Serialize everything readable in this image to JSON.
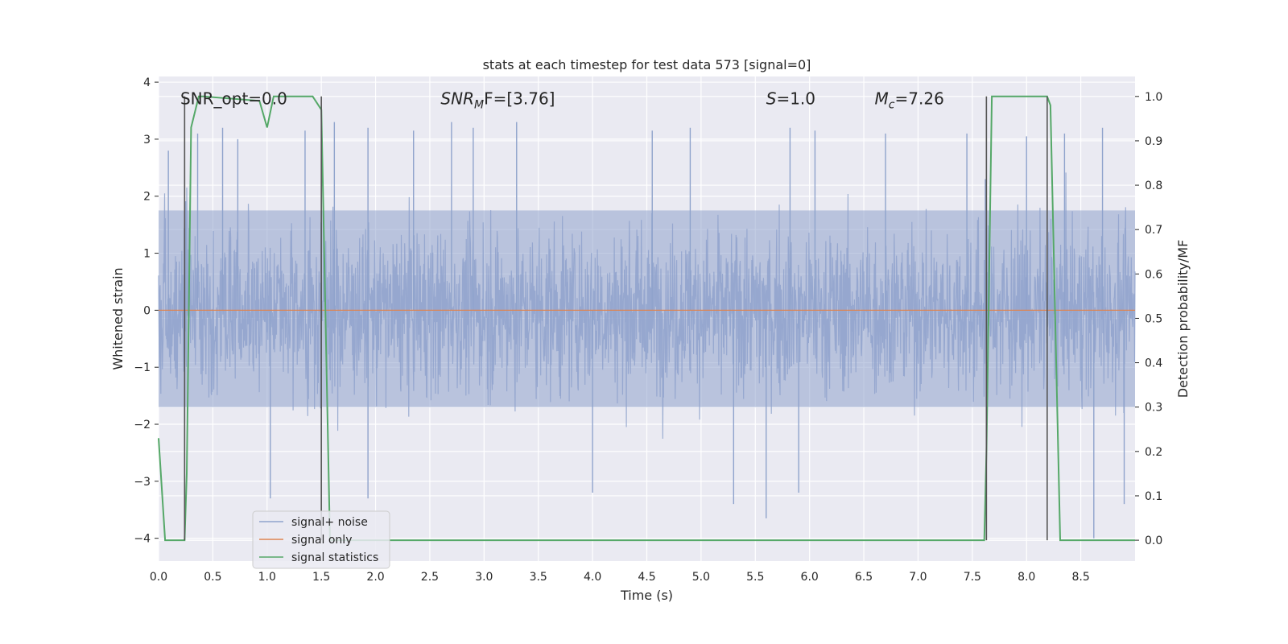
{
  "chart_data": {
    "type": "line",
    "title": "stats at each timestep for test data 573 [signal=0]",
    "xlabel": "Time (s)",
    "ylabel": "Whitened strain",
    "y2label": "Detection probability/MF",
    "xlim": [
      0.0,
      9.0
    ],
    "ylim": [
      -4.4,
      4.1
    ],
    "y2lim": [
      -0.047,
      1.045
    ],
    "x_ticks": [
      "0.0",
      "0.5",
      "1.0",
      "1.5",
      "2.0",
      "2.5",
      "3.0",
      "3.5",
      "4.0",
      "4.5",
      "5.0",
      "5.5",
      "6.0",
      "6.5",
      "7.0",
      "7.5",
      "8.0",
      "8.5"
    ],
    "y_ticks": [
      "4",
      "3",
      "2",
      "1",
      "0",
      "−1",
      "−2",
      "−3",
      "−4"
    ],
    "y2_ticks": [
      "1.0",
      "0.9",
      "0.8",
      "0.7",
      "0.6",
      "0.5",
      "0.4",
      "0.3",
      "0.2",
      "0.1",
      "0.0"
    ],
    "grid": true,
    "legend_position": "lower-left",
    "annotations": [
      {
        "text": "SNR_opt=0.0",
        "x": 0.2,
        "y": 3.7
      },
      {
        "text": "SNR",
        "sub": "M",
        "rest": "F=[3.76]",
        "x": 2.6,
        "y": 3.7
      },
      {
        "text": "S",
        "rest": "=1.0",
        "x": 5.6,
        "y": 3.7
      },
      {
        "text": "M",
        "sub": "c",
        "rest": "=7.26",
        "x": 6.6,
        "y": 3.7
      }
    ],
    "series": [
      {
        "name": "signal+ noise",
        "color": "#8fa3cc",
        "axis": "left",
        "description": "whitened noise, roughly uniform amplitude with std ~1, spikes to about ±3.3",
        "envelope_dense": [
          -1.7,
          1.75
        ],
        "spikes": [
          {
            "x": 0.09,
            "y": 2.8
          },
          {
            "x": 0.36,
            "y": 3.1
          },
          {
            "x": 0.59,
            "y": 3.2
          },
          {
            "x": 0.73,
            "y": 3.0
          },
          {
            "x": 1.03,
            "y": -3.3
          },
          {
            "x": 1.35,
            "y": 3.15
          },
          {
            "x": 1.62,
            "y": 3.3
          },
          {
            "x": 1.93,
            "y": 3.2
          },
          {
            "x": 1.93,
            "y": -3.3
          },
          {
            "x": 2.35,
            "y": 3.15
          },
          {
            "x": 2.7,
            "y": 3.3
          },
          {
            "x": 2.9,
            "y": 3.2
          },
          {
            "x": 3.3,
            "y": 3.3
          },
          {
            "x": 4.0,
            "y": -3.2
          },
          {
            "x": 4.55,
            "y": 3.15
          },
          {
            "x": 4.9,
            "y": 3.2
          },
          {
            "x": 5.3,
            "y": -3.4
          },
          {
            "x": 5.6,
            "y": -3.65
          },
          {
            "x": 5.82,
            "y": 3.2
          },
          {
            "x": 5.9,
            "y": -3.2
          },
          {
            "x": 6.05,
            "y": 3.15
          },
          {
            "x": 6.7,
            "y": 3.1
          },
          {
            "x": 7.45,
            "y": 3.1
          },
          {
            "x": 7.62,
            "y": 2.3
          },
          {
            "x": 8.0,
            "y": 3.05
          },
          {
            "x": 8.35,
            "y": 3.1
          },
          {
            "x": 8.7,
            "y": 3.2
          },
          {
            "x": 8.9,
            "y": -3.4
          },
          {
            "x": 8.62,
            "y": -4.0
          }
        ]
      },
      {
        "name": "signal only",
        "color": "#dd8452",
        "axis": "left",
        "x": [
          0.0,
          9.0
        ],
        "y": [
          0.0,
          0.0
        ]
      },
      {
        "name": "signal statistics",
        "color": "#55a868",
        "axis": "right",
        "x": [
          0.0,
          0.06,
          0.24,
          0.26,
          0.3,
          0.37,
          0.42,
          0.93,
          1.0,
          1.06,
          1.08,
          1.42,
          1.5,
          1.58,
          7.61,
          7.63,
          7.68,
          8.19,
          8.22,
          8.31,
          8.33,
          9.0
        ],
        "y": [
          0.23,
          0.0,
          0.0,
          0.15,
          0.93,
          1.0,
          1.0,
          0.99,
          0.93,
          1.0,
          1.0,
          1.0,
          0.97,
          0.0,
          0.0,
          0.2,
          1.0,
          1.0,
          0.98,
          0.0,
          0.0,
          0.0
        ]
      }
    ],
    "vertical_markers": [
      {
        "x": 0.24,
        "color": "#555555"
      },
      {
        "x": 1.5,
        "color": "#555555"
      },
      {
        "x": 7.63,
        "color": "#555555"
      },
      {
        "x": 8.19,
        "color": "#555555"
      }
    ],
    "legend": [
      {
        "label": "signal+ noise",
        "color": "#8fa3cc"
      },
      {
        "label": "signal only",
        "color": "#dd8452"
      },
      {
        "label": "signal statistics",
        "color": "#55a868"
      }
    ],
    "colors": {
      "plot_background": "#eaeaf2",
      "grid": "#ffffff",
      "text": "#262626"
    }
  }
}
